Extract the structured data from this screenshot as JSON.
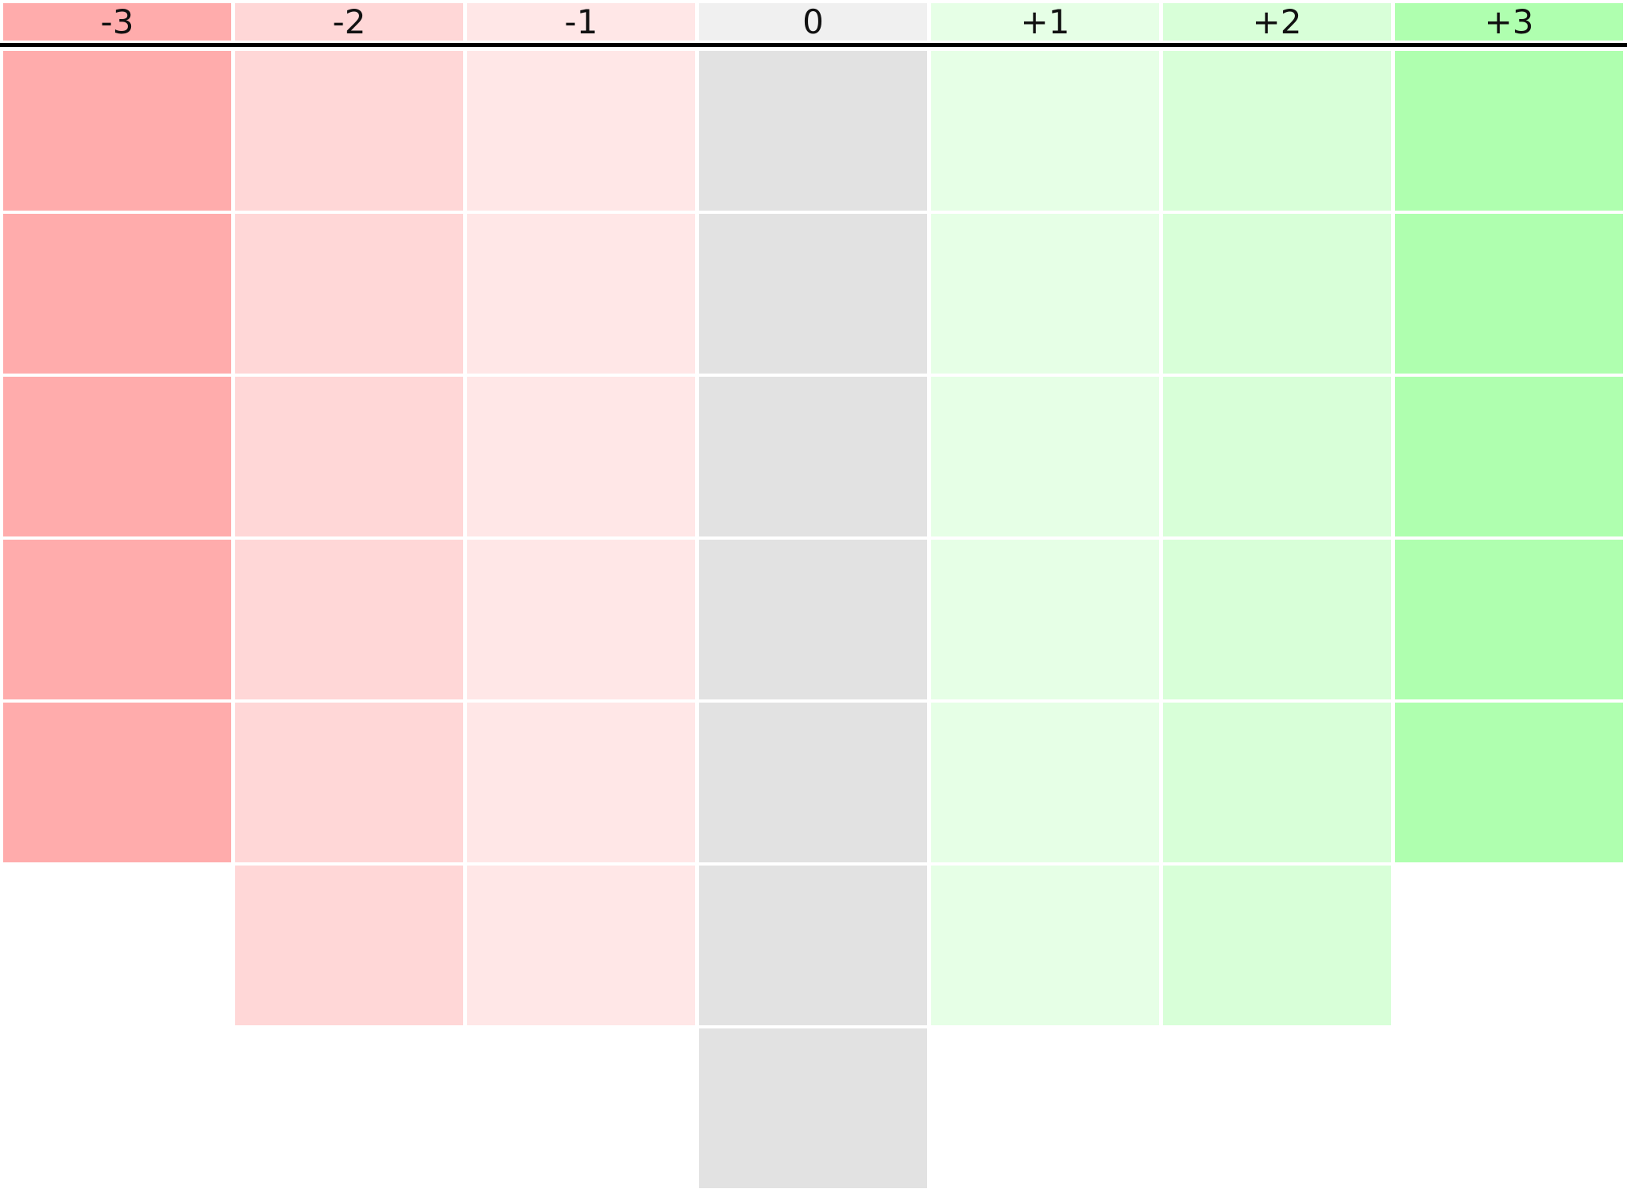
{
  "columns": [
    {
      "label": "-3",
      "header_color": "#ffacac",
      "cell_color": "#ffacac",
      "cell_count": 5
    },
    {
      "label": "-2",
      "header_color": "#ffd7d7",
      "cell_color": "#ffd7d7",
      "cell_count": 6
    },
    {
      "label": "-1",
      "header_color": "#ffe7e7",
      "cell_color": "#ffe7e7",
      "cell_count": 6
    },
    {
      "label": "0",
      "header_color": "#f0f0f0",
      "cell_color": "#e2e2e2",
      "cell_count": 7
    },
    {
      "label": "+1",
      "header_color": "#e6ffe6",
      "cell_color": "#e6ffe6",
      "cell_count": 6
    },
    {
      "label": "+2",
      "header_color": "#d8ffd8",
      "cell_color": "#d8ffd8",
      "cell_count": 6
    },
    {
      "label": "+3",
      "header_color": "#afffaf",
      "cell_color": "#afffaf",
      "cell_count": 5
    }
  ]
}
